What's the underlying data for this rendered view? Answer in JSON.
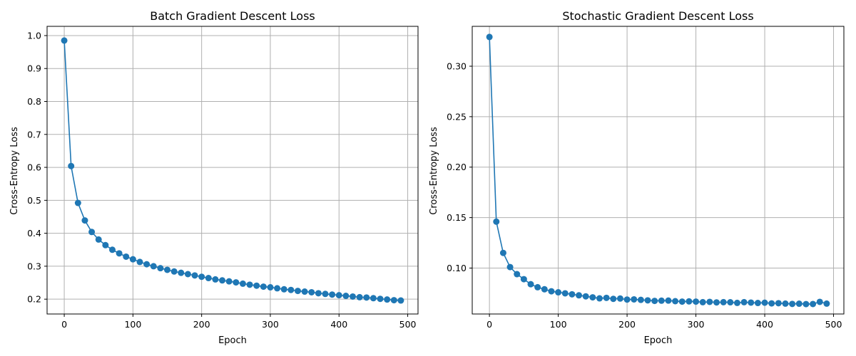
{
  "colors": {
    "series": "#1f77b4",
    "grid": "#b0b0b0"
  },
  "chart_data": [
    {
      "type": "line",
      "title": "Batch Gradient Descent Loss",
      "xlabel": "Epoch",
      "ylabel": "Cross-Entropy Loss",
      "grid": true,
      "xlim": [
        -25,
        515
      ],
      "ylim": [
        0.155,
        1.028
      ],
      "xticks": [
        0,
        100,
        200,
        300,
        400,
        500
      ],
      "yticks": [
        0.2,
        0.3,
        0.4,
        0.5,
        0.6,
        0.7,
        0.8,
        0.9,
        1.0
      ],
      "ytick_labels": [
        "0.2",
        "0.3",
        "0.4",
        "0.5",
        "0.6",
        "0.7",
        "0.8",
        "0.9",
        "1.0"
      ],
      "x": [
        0,
        10,
        20,
        30,
        40,
        50,
        60,
        70,
        80,
        90,
        100,
        110,
        120,
        130,
        140,
        150,
        160,
        170,
        180,
        190,
        200,
        210,
        220,
        230,
        240,
        250,
        260,
        270,
        280,
        290,
        300,
        310,
        320,
        330,
        340,
        350,
        360,
        370,
        380,
        390,
        400,
        410,
        420,
        430,
        440,
        450,
        460,
        470,
        480,
        490
      ],
      "series": [
        {
          "values": [
            0.985,
            0.604,
            0.492,
            0.439,
            0.404,
            0.381,
            0.364,
            0.35,
            0.339,
            0.329,
            0.321,
            0.313,
            0.306,
            0.3,
            0.294,
            0.289,
            0.284,
            0.28,
            0.276,
            0.272,
            0.268,
            0.264,
            0.26,
            0.257,
            0.254,
            0.251,
            0.247,
            0.244,
            0.241,
            0.238,
            0.236,
            0.233,
            0.23,
            0.228,
            0.225,
            0.223,
            0.221,
            0.218,
            0.216,
            0.214,
            0.212,
            0.21,
            0.208,
            0.206,
            0.205,
            0.203,
            0.201,
            0.199,
            0.197,
            0.196
          ]
        }
      ]
    },
    {
      "type": "line",
      "title": "Stochastic Gradient Descent Loss",
      "xlabel": "Epoch",
      "ylabel": "Cross-Entropy Loss",
      "grid": true,
      "xlim": [
        -25,
        515
      ],
      "ylim": [
        0.0545,
        0.3395
      ],
      "xticks": [
        0,
        100,
        200,
        300,
        400,
        500
      ],
      "yticks": [
        0.1,
        0.15,
        0.2,
        0.25,
        0.3
      ],
      "ytick_labels": [
        "0.10",
        "0.15",
        "0.20",
        "0.25",
        "0.30"
      ],
      "x": [
        0,
        10,
        20,
        30,
        40,
        50,
        60,
        70,
        80,
        90,
        100,
        110,
        120,
        130,
        140,
        150,
        160,
        170,
        180,
        190,
        200,
        210,
        220,
        230,
        240,
        250,
        260,
        270,
        280,
        290,
        300,
        310,
        320,
        330,
        340,
        350,
        360,
        370,
        380,
        390,
        400,
        410,
        420,
        430,
        440,
        450,
        460,
        470,
        480,
        490
      ],
      "series": [
        {
          "values": [
            0.329,
            0.146,
            0.115,
            0.101,
            0.094,
            0.089,
            0.084,
            0.081,
            0.079,
            0.077,
            0.076,
            0.075,
            0.074,
            0.073,
            0.072,
            0.071,
            0.07,
            0.0705,
            0.0695,
            0.0698,
            0.0688,
            0.069,
            0.0685,
            0.068,
            0.0675,
            0.0677,
            0.0678,
            0.0672,
            0.0668,
            0.067,
            0.0668,
            0.0662,
            0.0665,
            0.066,
            0.0662,
            0.0661,
            0.0655,
            0.0662,
            0.0658,
            0.0654,
            0.0657,
            0.065,
            0.0652,
            0.0648,
            0.0645,
            0.0647,
            0.0643,
            0.0644,
            0.0665,
            0.0648
          ]
        }
      ]
    }
  ]
}
